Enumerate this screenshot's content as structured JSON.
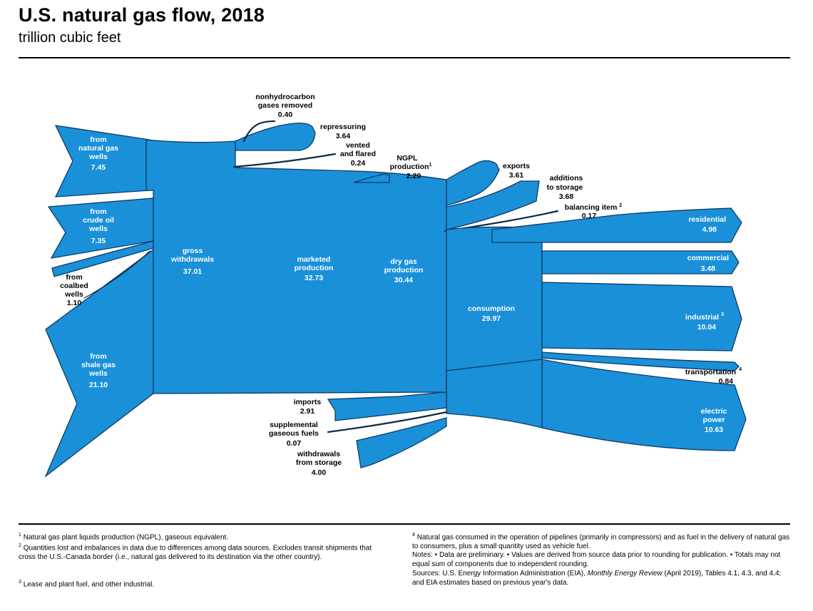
{
  "header": {
    "title": "U.S. natural gas flow, 2018",
    "subtitle": "trillion cubic feet"
  },
  "flows": {
    "from_natural_gas_wells": {
      "line1": "from",
      "line2": "natural gas",
      "line3": "wells",
      "value": "7.45"
    },
    "from_crude_oil_wells": {
      "line1": "from",
      "line2": "crude oil",
      "line3": "wells",
      "value": "7.35"
    },
    "from_coalbed_wells": {
      "line1": "from",
      "line2": "coalbed",
      "line3": "wells",
      "value": "1.10"
    },
    "from_shale_gas_wells": {
      "line1": "from",
      "line2": "shale gas",
      "line3": "wells",
      "value": "21.10"
    },
    "gross_withdrawals": {
      "line1": "gross",
      "line2": "withdrawals",
      "value": "37.01"
    },
    "nonhydrocarbon_gases_removed": {
      "line1": "nonhydrocarbon",
      "line2": "gases removed",
      "value": "0.40"
    },
    "repressuring": {
      "line1": "repressuring",
      "value": "3.64"
    },
    "vented_and_flared": {
      "line1": "vented",
      "line2": "and flared",
      "value": "0.24"
    },
    "marketed_production": {
      "line1": "marketed",
      "line2": "production",
      "value": "32.73"
    },
    "ngpl_production": {
      "line1": "NGPL",
      "line2": "production",
      "footnote": "1",
      "value": "2.29"
    },
    "dry_gas_production": {
      "line1": "dry gas",
      "line2": "production",
      "value": "30.44"
    },
    "exports": {
      "line1": "exports",
      "value": "3.61"
    },
    "additions_to_storage": {
      "line1": "additions",
      "line2": "to storage",
      "value": "3.68"
    },
    "balancing_item": {
      "line1": "balancing item",
      "footnote": "2",
      "value": "0.17"
    },
    "consumption": {
      "line1": "consumption",
      "value": "29.97"
    },
    "residential": {
      "line1": "residential",
      "value": "4.98"
    },
    "commercial": {
      "line1": "commercial",
      "value": "3.48"
    },
    "industrial": {
      "line1": "industrial",
      "footnote": "3",
      "value": "10.04"
    },
    "transportation": {
      "line1": "transportation",
      "footnote": "4",
      "value": "0.84"
    },
    "electric_power": {
      "line1": "electric",
      "line2": "power",
      "value": "10.63"
    },
    "imports": {
      "line1": "imports",
      "value": "2.91"
    },
    "supplemental_gaseous_fuels": {
      "line1": "supplemental",
      "line2": "gaseous fuels",
      "value": "0.07"
    },
    "withdrawals_from_storage": {
      "line1": "withdrawals",
      "line2": "from storage",
      "value": "4.00"
    }
  },
  "footnotes": {
    "fn1": "Natural gas plant liquids production (NGPL), gaseous equivalent.",
    "fn2": "Quantities lost and imbalances in data due to differences among data sources.  Excludes transit shipments that cross the U.S.-Canada border (i.e., natural gas delivered to its destination via the other country).",
    "fn3": "Lease and plant fuel, and other industrial.",
    "fn4": "Natural gas consumed in the operation of pipelines (primarily in compressors) and as fuel in the delivery of natural gas to consumers, plus a small quantity used as vehicle fuel.",
    "notes": "Notes:  • Data are preliminary.  • Values are derived from source data prior to rounding for publication.  • Totals may not equal sum of components due to independent rounding.",
    "sources_prefix": "Sources:  U.S. Energy Information Administration (EIA),",
    "sources_italic": "Monthly Energy Review",
    "sources_suffix": "(April 2019), Tables 4.1, 4.3, and 4.4; and EIA estimates based on previous year's data."
  },
  "colors": {
    "flow_fill": "#1a90d9",
    "flow_outline": "#0d3b66",
    "label_on_flow": "#ffffff"
  }
}
